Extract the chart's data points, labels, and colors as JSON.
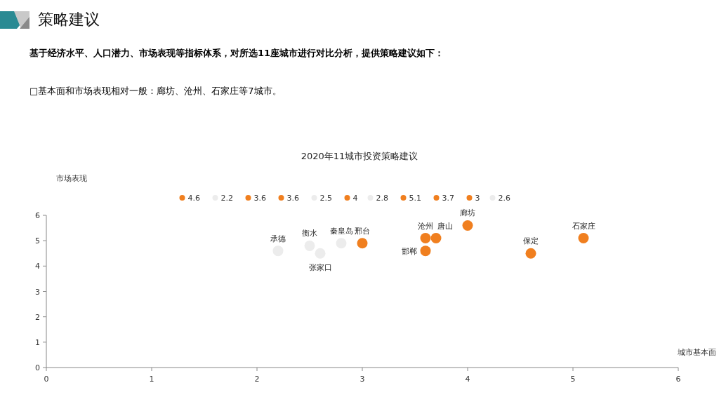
{
  "chart_data": {
    "type": "scatter",
    "title": "2020年11城市投资策略建议",
    "xlabel": "城市基本面",
    "ylabel": "市场表现",
    "xlim": [
      0,
      6
    ],
    "ylim": [
      0,
      6
    ],
    "xticks": [
      0,
      1,
      2,
      3,
      4,
      5,
      6
    ],
    "yticks": [
      0,
      1,
      2,
      3,
      4,
      5,
      6
    ],
    "grid": false,
    "legend": "top",
    "marker": "circle",
    "series": [
      {
        "name": "4.6",
        "color": "#f07f1f",
        "x": [
          4.6
        ],
        "values": [
          4.5
        ]
      },
      {
        "name": "2.2",
        "color": "#ececec",
        "x": [
          2.2
        ],
        "values": [
          4.6
        ]
      },
      {
        "name": "3.6",
        "color": "#f07f1f",
        "x": [
          3.6
        ],
        "values": [
          5.1
        ]
      },
      {
        "name": "3.6",
        "color": "#f07f1f",
        "x": [
          3.6
        ],
        "values": [
          4.6
        ]
      },
      {
        "name": "2.5",
        "color": "#ececec",
        "x": [
          2.5
        ],
        "values": [
          4.8
        ]
      },
      {
        "name": "4",
        "color": "#f07f1f",
        "x": [
          4
        ],
        "values": [
          5.6
        ]
      },
      {
        "name": "2.8",
        "color": "#ececec",
        "x": [
          2.8
        ],
        "values": [
          4.9
        ]
      },
      {
        "name": "5.1",
        "color": "#f07f1f",
        "x": [
          5.1
        ],
        "values": [
          5.1
        ]
      },
      {
        "name": "3.7",
        "color": "#f07f1f",
        "x": [
          3.7
        ],
        "values": [
          5.1
        ]
      },
      {
        "name": "3",
        "color": "#f07f1f",
        "x": [
          3
        ],
        "values": [
          4.9
        ]
      },
      {
        "name": "2.6",
        "color": "#ececec",
        "x": [
          2.6
        ],
        "values": [
          4.5
        ]
      }
    ],
    "annotations": [
      "策略建议",
      "基于经济水平、人口潜力、市场表现等指标体系，对所选11座城市进行对比分析，提供策略建议如下：",
      "□基本面和市场表现相对一般：廊坊、沧州、石家庄等7城市。",
      {
        "text": "保定",
        "x": 4.6,
        "y": 4.5
      },
      {
        "text": "承德",
        "x": 2.2,
        "y": 4.6
      },
      {
        "text": "沧州",
        "x": 3.6,
        "y": 5.1
      },
      {
        "text": "邯郸",
        "x": 3.6,
        "y": 4.6
      },
      {
        "text": "衡水",
        "x": 2.5,
        "y": 4.8
      },
      {
        "text": "廊坊",
        "x": 4,
        "y": 5.6
      },
      {
        "text": "秦皇岛",
        "x": 2.8,
        "y": 4.9
      },
      {
        "text": "石家庄",
        "x": 5.1,
        "y": 5.1
      },
      {
        "text": "唐山",
        "x": 3.7,
        "y": 5.1
      },
      {
        "text": "邢台",
        "x": 3,
        "y": 4.9
      },
      {
        "text": "张家口",
        "x": 2.6,
        "y": 4.5
      }
    ]
  }
}
